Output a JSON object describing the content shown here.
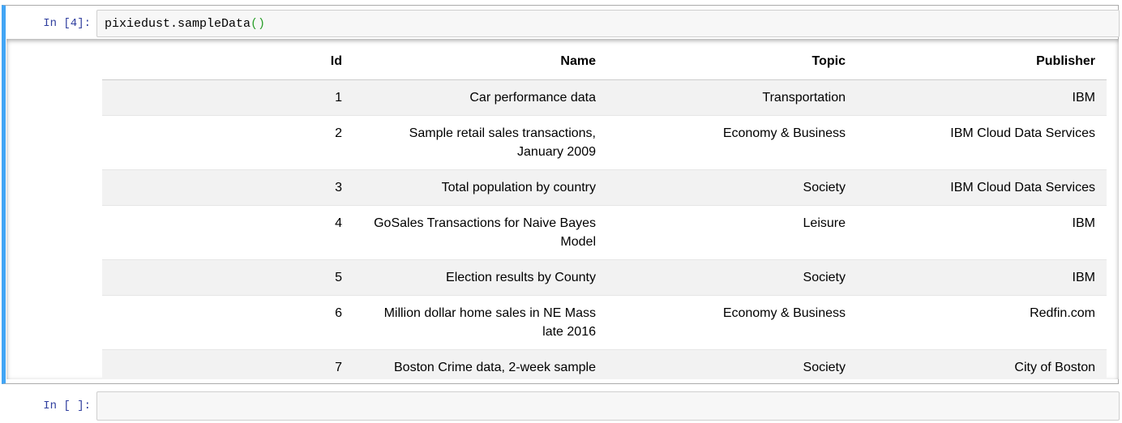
{
  "cells": [
    {
      "prompt": "In [4]:",
      "code_name": "pixiedust.sampleData",
      "code_parens": "()"
    },
    {
      "prompt": "In [ ]:"
    }
  ],
  "output_table": {
    "columns": [
      "Id",
      "Name",
      "Topic",
      "Publisher"
    ],
    "rows": [
      {
        "id": "1",
        "name": "Car performance data",
        "topic": "Transportation",
        "publisher": "IBM"
      },
      {
        "id": "2",
        "name": "Sample retail sales transactions, January 2009",
        "topic": "Economy & Business",
        "publisher": "IBM Cloud Data Services"
      },
      {
        "id": "3",
        "name": "Total population by country",
        "topic": "Society",
        "publisher": "IBM Cloud Data Services"
      },
      {
        "id": "4",
        "name": "GoSales Transactions for Naive Bayes Model",
        "topic": "Leisure",
        "publisher": "IBM"
      },
      {
        "id": "5",
        "name": "Election results by County",
        "topic": "Society",
        "publisher": "IBM"
      },
      {
        "id": "6",
        "name": "Million dollar home sales in NE Mass late 2016",
        "topic": "Economy & Business",
        "publisher": "Redfin.com"
      },
      {
        "id": "7",
        "name": "Boston Crime data, 2-week sample",
        "topic": "Society",
        "publisher": "City of Boston"
      }
    ]
  },
  "colors": {
    "active_cell_border": "#42a5f5",
    "prompt": "#303f9f",
    "paren": "#2ca02c"
  }
}
